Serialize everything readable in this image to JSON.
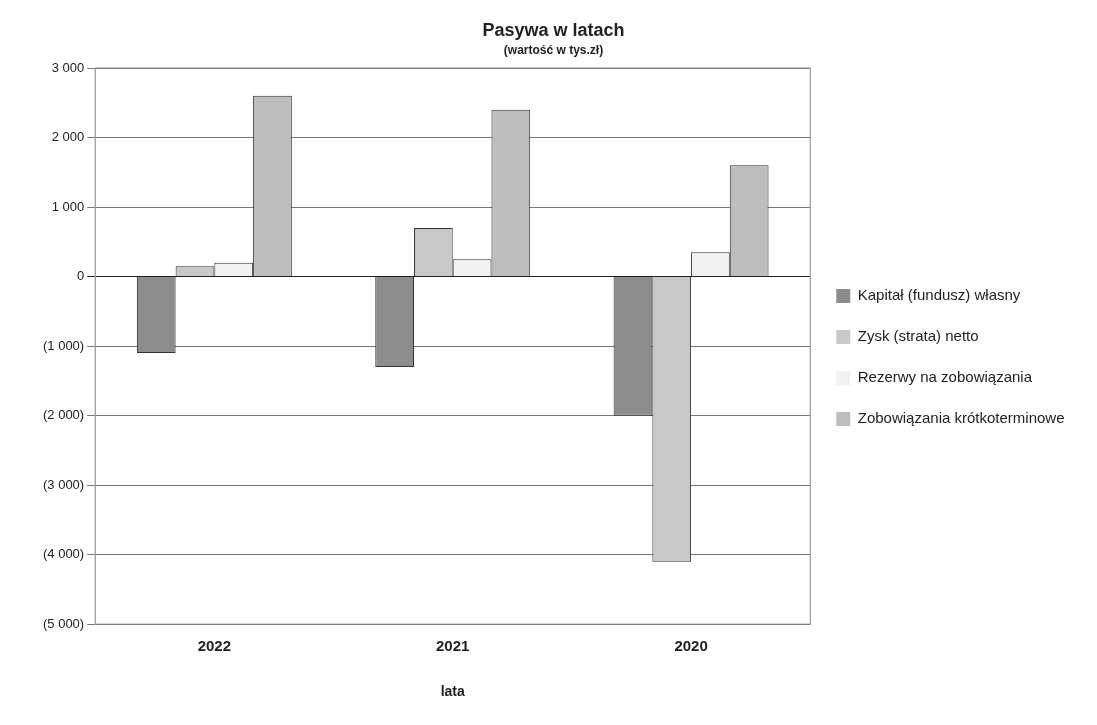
{
  "chart_data": {
    "type": "bar",
    "title": "Pasywa w latach",
    "subtitle": "(wartość w tys.zł)",
    "xlabel": "lata",
    "categories": [
      "2022",
      "2021",
      "2020"
    ],
    "series": [
      {
        "name": "Kapitał (fundusz) własny",
        "color": "#8c8c8c",
        "values": [
          -1100,
          -1300,
          -2000
        ]
      },
      {
        "name": "Zysk (strata) netto",
        "color": "#c8c8c8",
        "values": [
          150,
          700,
          -4100
        ]
      },
      {
        "name": "Rezerwy na zobowiązania",
        "color": "#f2f2f2",
        "values": [
          200,
          250,
          350
        ]
      },
      {
        "name": "Zobowiązania krótkoterminowe",
        "color": "#bdbdbd",
        "values": [
          2600,
          2400,
          1600
        ]
      }
    ],
    "ylim": [
      -5000,
      3000
    ],
    "yticks": [
      {
        "value": -5000,
        "label": "(5 000)"
      },
      {
        "value": -4000,
        "label": "(4 000)"
      },
      {
        "value": -3000,
        "label": "(3 000)"
      },
      {
        "value": -2000,
        "label": "(2 000)"
      },
      {
        "value": -1000,
        "label": "(1 000)"
      },
      0,
      {
        "value": 1000,
        "label": "1 000"
      },
      {
        "value": 2000,
        "label": "2 000"
      },
      {
        "value": 3000,
        "label": "3 000"
      }
    ],
    "grid": "y",
    "legend": "right"
  }
}
